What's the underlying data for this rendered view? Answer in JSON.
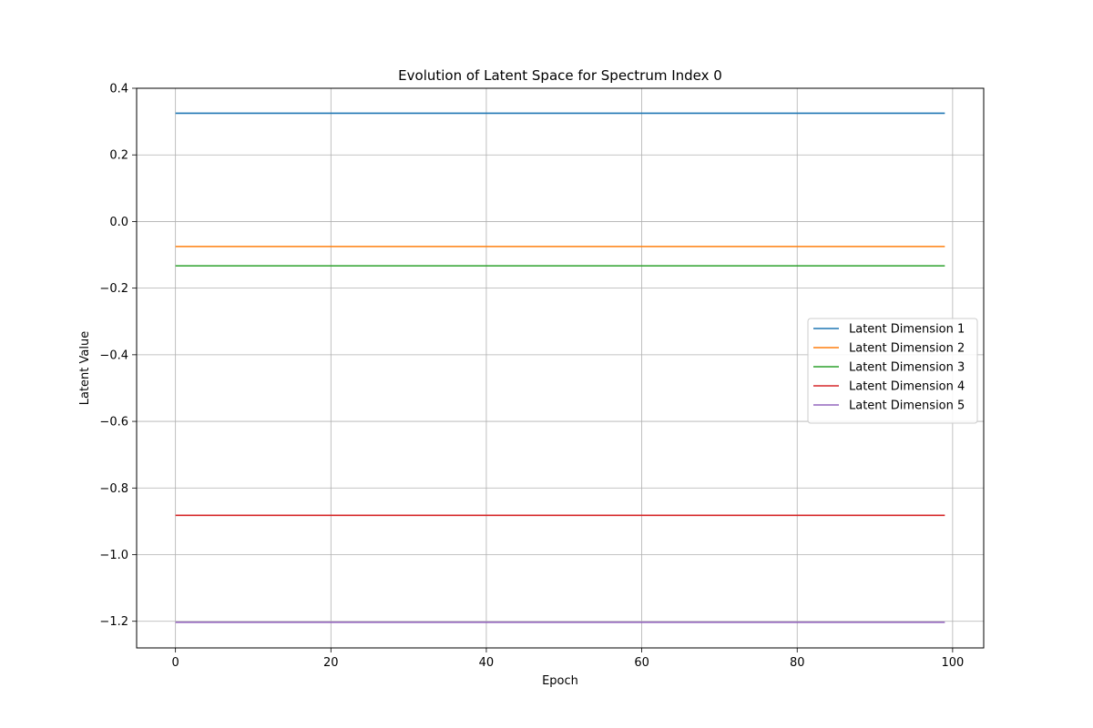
{
  "chart_data": {
    "type": "line",
    "title": "Evolution of Latent Space for Spectrum Index 0",
    "xlabel": "Epoch",
    "ylabel": "Latent Value",
    "xlim": [
      -5,
      104
    ],
    "ylim": [
      -1.28,
      0.4
    ],
    "xticks": [
      0,
      20,
      40,
      60,
      80,
      100
    ],
    "xtick_labels": [
      "0",
      "20",
      "40",
      "60",
      "80",
      "100"
    ],
    "yticks": [
      0.4,
      0.2,
      0.0,
      -0.2,
      -0.4,
      -0.6,
      -0.8,
      -1.0,
      -1.2
    ],
    "ytick_labels": [
      "0.4",
      "0.2",
      "0.0",
      "−0.2",
      "−0.4",
      "−0.6",
      "−0.8",
      "−1.0",
      "−1.2"
    ],
    "grid": true,
    "legend_position": "center-right",
    "x_range": [
      0,
      99
    ],
    "series": [
      {
        "name": "Latent Dimension 1",
        "color": "#1f77b4",
        "value": 0.325
      },
      {
        "name": "Latent Dimension 2",
        "color": "#ff7f0e",
        "value": -0.075
      },
      {
        "name": "Latent Dimension 3",
        "color": "#2ca02c",
        "value": -0.133
      },
      {
        "name": "Latent Dimension 4",
        "color": "#d62728",
        "value": -0.882
      },
      {
        "name": "Latent Dimension 5",
        "color": "#9467bd",
        "value": -1.203
      }
    ]
  }
}
